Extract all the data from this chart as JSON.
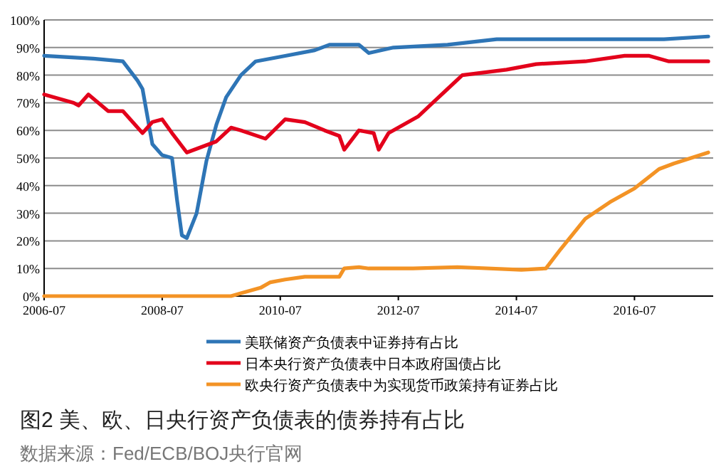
{
  "chart_data": {
    "type": "line",
    "title": "图2 美、欧、日央行资产负债表的债券持有占比",
    "annotations": [
      "数据来源：Fed/ECB/BOJ央行官网"
    ],
    "xlim": [
      "2006-07",
      "2017-11"
    ],
    "xticks": [
      "2006-07",
      "2008-07",
      "2010-07",
      "2012-07",
      "2014-07",
      "2016-07"
    ],
    "ylim": [
      0,
      100
    ],
    "yticks": [
      {
        "value": 0,
        "label": "0%"
      },
      {
        "value": 10,
        "label": "10%"
      },
      {
        "value": 20,
        "label": "20%"
      },
      {
        "value": 30,
        "label": "30%"
      },
      {
        "value": 40,
        "label": "40%"
      },
      {
        "value": 50,
        "label": "50%"
      },
      {
        "value": 60,
        "label": "60%"
      },
      {
        "value": 70,
        "label": "70%"
      },
      {
        "value": 80,
        "label": "80%"
      },
      {
        "value": 90,
        "label": "90%"
      },
      {
        "value": 100,
        "label": "100%"
      }
    ],
    "grid": "y",
    "legend": "bottom",
    "marker": "none",
    "line_style": "solid",
    "series": [
      {
        "name": "美联储资产负债表中证券持有占比",
        "color": "#2e75b6",
        "x": [
          "2006-07",
          "2007-05",
          "2007-11",
          "2008-02",
          "2008-03",
          "2008-05",
          "2008-07",
          "2008-09",
          "2008-10",
          "2008-11",
          "2008-12",
          "2009-02",
          "2009-04",
          "2009-06",
          "2009-08",
          "2009-11",
          "2010-02",
          "2010-08",
          "2011-02",
          "2011-05",
          "2011-11",
          "2012-01",
          "2012-06",
          "2013-05",
          "2014-03",
          "2015-11",
          "2017-01",
          "2017-10"
        ],
        "values": [
          87,
          86,
          85,
          78,
          75,
          55,
          51,
          50,
          35,
          22,
          21,
          30,
          49,
          62,
          72,
          80,
          85,
          87,
          89,
          91,
          91,
          88,
          90,
          91,
          93,
          93,
          93,
          94
        ]
      },
      {
        "name": "日本央行资产负债表中日本政府国债占比",
        "color": "#e3001b",
        "x": [
          "2006-07",
          "2007-01",
          "2007-02",
          "2007-04",
          "2007-08",
          "2007-11",
          "2008-01",
          "2008-03",
          "2008-05",
          "2008-07",
          "2008-09",
          "2008-12",
          "2009-03",
          "2009-06",
          "2009-09",
          "2009-11",
          "2010-04",
          "2010-08",
          "2010-12",
          "2011-04",
          "2011-07",
          "2011-08",
          "2011-11",
          "2012-02",
          "2012-03",
          "2012-05",
          "2012-11",
          "2013-02",
          "2013-05",
          "2013-08",
          "2014-05",
          "2014-11",
          "2015-09",
          "2016-05",
          "2016-10",
          "2017-02",
          "2017-10"
        ],
        "values": [
          73,
          70,
          69,
          73,
          67,
          67,
          63,
          59,
          63,
          64,
          59,
          52,
          54,
          56,
          61,
          60,
          57,
          64,
          63,
          60,
          58,
          53,
          60,
          59,
          53,
          59,
          65,
          70,
          75,
          80,
          82,
          84,
          85,
          87,
          87,
          85,
          85
        ]
      },
      {
        "name": "欧央行资产负债表中为实现货币政策持有证券占比",
        "color": "#f39325",
        "x": [
          "2006-07",
          "2009-09",
          "2009-11",
          "2010-03",
          "2010-05",
          "2010-08",
          "2010-12",
          "2011-07",
          "2011-08",
          "2011-11",
          "2012-01",
          "2012-10",
          "2013-07",
          "2014-08",
          "2015-01",
          "2015-04",
          "2015-09",
          "2016-02",
          "2016-07",
          "2016-12",
          "2017-03",
          "2017-10"
        ],
        "values": [
          0,
          0,
          1,
          3,
          5,
          6,
          7,
          7,
          10,
          10.5,
          10,
          10,
          10.5,
          9.5,
          10,
          17,
          28,
          34,
          39,
          46,
          48,
          52
        ]
      }
    ]
  }
}
